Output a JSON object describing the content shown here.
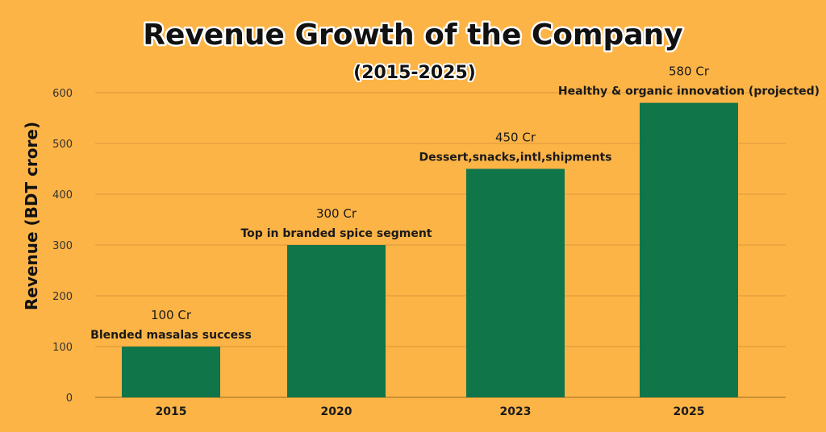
{
  "chart_data": {
    "type": "bar",
    "title": "Revenue Growth of the Company",
    "subtitle": "(2015-2025)",
    "ylabel": "Revenue (BDT crore)",
    "xlabel": "",
    "categories": [
      "2015",
      "2020",
      "2023",
      "2025"
    ],
    "values": [
      100,
      300,
      450,
      580
    ],
    "data_labels": [
      "100 Cr",
      "300 Cr",
      "450 Cr",
      "580 Cr"
    ],
    "annotations": [
      "Blended masalas success",
      "Top in branded spice segment",
      "Dessert,snacks,intl,shipments",
      "Healthy & organic innovation (projected)"
    ],
    "yticks": [
      0,
      100,
      200,
      300,
      400,
      500,
      600
    ],
    "ylim": [
      0,
      610
    ],
    "grid": true,
    "legend": "none"
  },
  "colors": {
    "background": "#FDB446",
    "bar": "#11754A"
  }
}
